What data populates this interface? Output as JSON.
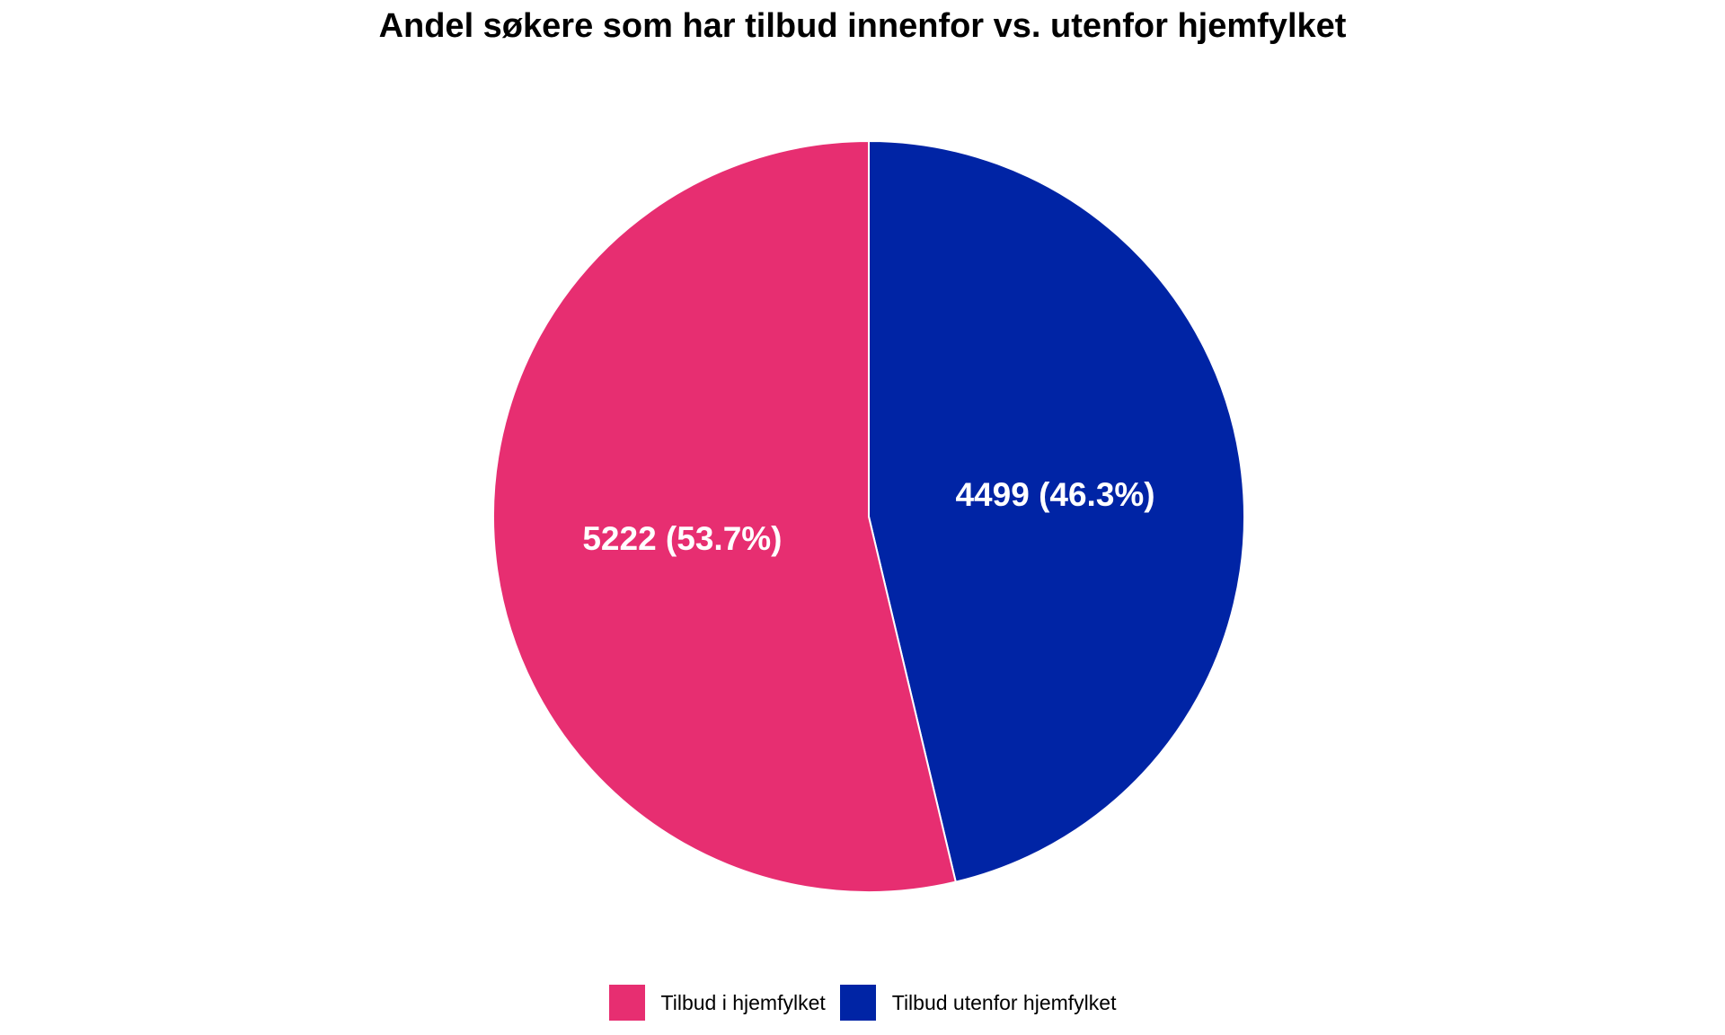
{
  "chart_data": {
    "type": "pie",
    "title": "Andel søkere som har tilbud innenfor vs. utenfor hjemfylket",
    "slices": [
      {
        "name": "Tilbud utenfor hjemfylket",
        "value": 4499,
        "percent": 46.3,
        "label": "4499 (46.3%)",
        "color": "#0024A5"
      },
      {
        "name": "Tilbud i hjemfylket",
        "value": 5222,
        "percent": 53.7,
        "label": "5222 (53.7%)",
        "color": "#E72E71"
      }
    ],
    "start_angle": "12 o'clock",
    "direction": "clockwise",
    "legend": {
      "position": "bottom",
      "items": [
        {
          "label": "Tilbud i hjemfylket",
          "color": "#E72E71"
        },
        {
          "label": "Tilbud utenfor hjemfylket",
          "color": "#0024A5"
        }
      ]
    }
  }
}
